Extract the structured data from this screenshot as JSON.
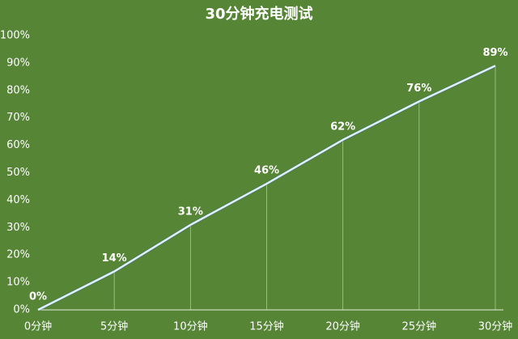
{
  "chart_data": {
    "type": "line",
    "title": "30分钟充电测试",
    "categories": [
      "0分钟",
      "5分钟",
      "10分钟",
      "15分钟",
      "20分钟",
      "25分钟",
      "30分钟"
    ],
    "series": [
      {
        "color": "#dff1fb",
        "values": [
          0,
          14,
          31,
          46,
          62,
          76,
          89
        ],
        "value_labels": [
          "0%",
          "14%",
          "31%",
          "46%",
          "62%",
          "76%",
          "89%"
        ]
      }
    ],
    "ylim": [
      0,
      100
    ],
    "yticks": [
      {
        "value": 0,
        "label": "0%"
      },
      {
        "value": 10,
        "label": "10%"
      },
      {
        "value": 20,
        "label": "20%"
      },
      {
        "value": 30,
        "label": "30%"
      },
      {
        "value": 40,
        "label": "40%"
      },
      {
        "value": 50,
        "label": "50%"
      },
      {
        "value": 60,
        "label": "60%"
      },
      {
        "value": 70,
        "label": "70%"
      },
      {
        "value": 80,
        "label": "80%"
      },
      {
        "value": 90,
        "label": "90%"
      },
      {
        "value": 100,
        "label": "100%"
      }
    ],
    "grid": false
  }
}
